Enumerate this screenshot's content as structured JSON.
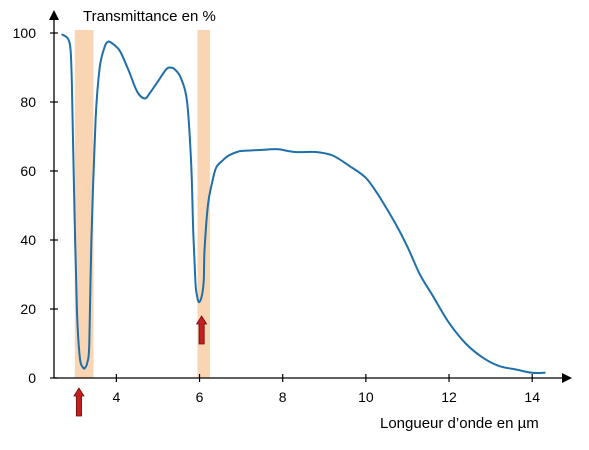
{
  "chart_data": {
    "type": "line",
    "ylabel": "Transmittance en %",
    "xlabel": "Longueur d’onde en µm",
    "xlim": [
      2.5,
      14.5
    ],
    "ylim": [
      0,
      100
    ],
    "x_ticks": [
      4,
      6,
      8,
      10,
      12,
      14
    ],
    "y_ticks": [
      0,
      20,
      40,
      60,
      80,
      100
    ],
    "grid": false,
    "highlight_bands": [
      {
        "x_start": 3.0,
        "x_end": 3.45
      },
      {
        "x_start": 5.95,
        "x_end": 6.25
      }
    ],
    "markers": [
      {
        "x": 3.1,
        "type": "arrow-up"
      },
      {
        "x": 6.05,
        "type": "arrow-up"
      }
    ],
    "series": [
      {
        "x": [
          2.7,
          2.78,
          2.85,
          2.9,
          2.93,
          2.98,
          3.05,
          3.12,
          3.2,
          3.25,
          3.3,
          3.35,
          3.4,
          3.5,
          3.6,
          3.72,
          3.8,
          3.9,
          4.0,
          4.1,
          4.3,
          4.5,
          4.68,
          4.8,
          5.0,
          5.2,
          5.3,
          5.4,
          5.55,
          5.7,
          5.8,
          5.85,
          5.9,
          5.93,
          5.98,
          6.05,
          6.1,
          6.12,
          6.2,
          6.3,
          6.4,
          6.55,
          6.7,
          6.9,
          7.0,
          7.3,
          7.6,
          7.9,
          8.3,
          8.8,
          9.2,
          9.6,
          10.0,
          10.3,
          10.7,
          11.0,
          11.3,
          11.6,
          12.0,
          12.4,
          12.8,
          13.2,
          13.6,
          14.0,
          14.3
        ],
        "y": [
          99.5,
          99.0,
          98.0,
          95.0,
          85.0,
          55.0,
          20.0,
          6.0,
          3.0,
          3.0,
          4.5,
          10.0,
          40.0,
          75.0,
          90.0,
          96.0,
          97.5,
          97.0,
          96.0,
          94.5,
          89.0,
          83.0,
          81.0,
          82.5,
          86.0,
          89.5,
          90.0,
          89.5,
          87.0,
          80.0,
          62.0,
          42.0,
          28.0,
          24.5,
          22.0,
          23.5,
          28.0,
          37.0,
          50.0,
          56.5,
          61.0,
          63.0,
          64.5,
          65.5,
          65.8,
          66.0,
          66.2,
          66.3,
          65.5,
          65.5,
          64.5,
          61.5,
          58.0,
          53.0,
          45.0,
          38.0,
          30.0,
          24.0,
          16.0,
          10.0,
          6.0,
          3.5,
          2.5,
          1.5,
          1.5
        ]
      }
    ]
  }
}
